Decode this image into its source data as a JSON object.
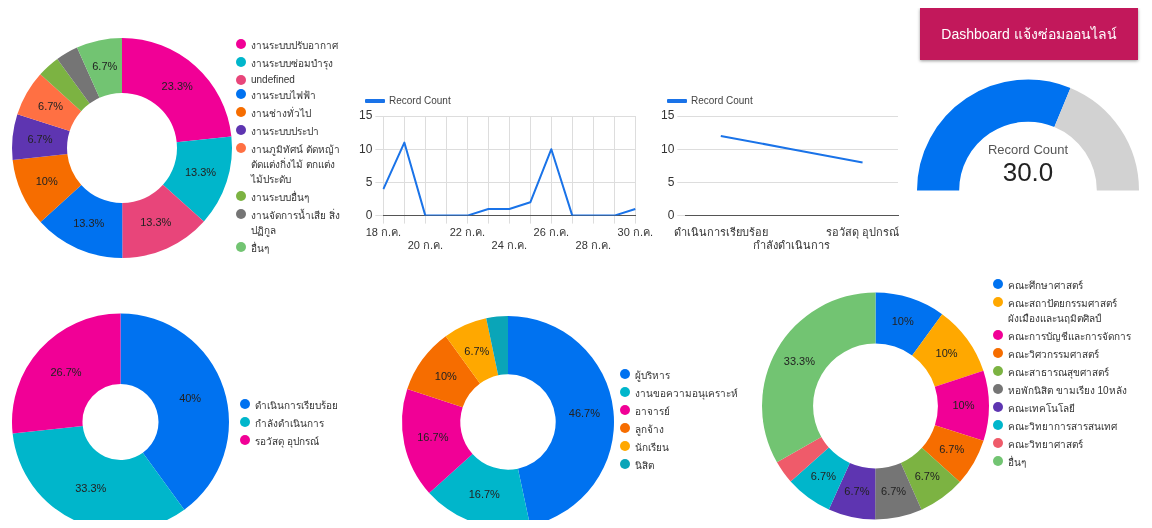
{
  "chart_data": [
    {
      "type": "donut",
      "categories": [
        "งานระบบปรับอากาศ",
        "งานระบบซ่อมบำรุง",
        "undefined",
        "งานระบบไฟฟ้า",
        "งานช่างทั่วไป",
        "งานระบบประปา",
        "งานภูมิทัศน์ ตัดหญ้า ตัดแต่งกิ่งไม้ ตกแต่งไม้ประดับ",
        "งานระบบอื่นๆ",
        "งานจัดการน้ำเสีย สิ่งปฏิกูล",
        "อื่นๆ"
      ],
      "values": [
        23.3,
        13.3,
        13.3,
        13.3,
        10,
        6.7,
        6.7,
        3.3,
        3.3,
        6.7
      ],
      "colors": [
        "#f10096",
        "#00b6cb",
        "#e8457a",
        "#0072f0",
        "#f66d00",
        "#5e35b1",
        "#ff7043",
        "#7cb342",
        "#757575",
        "#72c472"
      ],
      "value_labels": [
        "23.3%",
        "13.3%",
        "13.3%",
        "13.3%",
        "10%",
        "6.7%",
        "6.7%",
        null,
        null,
        "6.7%"
      ],
      "legend": "right"
    },
    {
      "type": "line",
      "categories": [
        "18 ก.ค.",
        null,
        "20 ก.ค.",
        null,
        "22 ก.ค.",
        null,
        "24 ก.ค.",
        null,
        "26 ก.ค.",
        null,
        "28 ก.ค.",
        null,
        "30 ก.ค."
      ],
      "series": [
        {
          "name": "Record Count",
          "color": "#1a73e8",
          "values": [
            4,
            11,
            0,
            0,
            0,
            1,
            1,
            2,
            10,
            0,
            0,
            0,
            1
          ]
        }
      ],
      "ylim": [
        0,
        15
      ],
      "yticks": [
        0,
        5,
        10,
        15
      ],
      "grid": true,
      "legend": "top left",
      "marker": "none",
      "line_style": "solid"
    },
    {
      "type": "line",
      "categories": [
        "ดำเนินการเรียบร้อย",
        "กำลังดำเนินการ",
        "รอวัสดุ อุปกรณ์"
      ],
      "series": [
        {
          "name": "Record Count",
          "color": "#1a73e8",
          "values": [
            12,
            10,
            8
          ]
        }
      ],
      "ylim": [
        0,
        15
      ],
      "yticks": [
        0,
        5,
        10,
        15
      ],
      "grid": "y",
      "legend": "top left",
      "marker": "none",
      "line_style": "solid"
    },
    {
      "type": "other",
      "title": "Dashboard แจ้งซ่อมออนไลน์"
    },
    {
      "type": "donut",
      "categories": [
        null,
        null
      ],
      "values": [
        62.5,
        37.5
      ],
      "colors": [
        "#0072f0",
        "#d2d2d2"
      ],
      "annotations": [
        "Record Count",
        "30.0"
      ]
    },
    {
      "type": "donut",
      "categories": [
        "ดำเนินการเรียบร้อย",
        "กำลังดำเนินการ",
        "รอวัสดุ อุปกรณ์"
      ],
      "values": [
        40,
        33.3,
        26.7
      ],
      "colors": [
        "#0072f0",
        "#00b6cb",
        "#f10096"
      ],
      "value_labels": [
        "40%",
        "33.3%",
        "26.7%"
      ],
      "legend": "right"
    },
    {
      "type": "donut",
      "categories": [
        "ผู้บริหาร",
        "งานขอความอนุเคราะห์",
        "อาจารย์",
        "ลูกจ้าง",
        "นักเรียน",
        "นิสิต"
      ],
      "values": [
        46.7,
        16.7,
        16.7,
        10,
        6.7,
        3.3
      ],
      "colors": [
        "#0072f0",
        "#00b6cb",
        "#f10096",
        "#f66d00",
        "#ffa800",
        "#0aa5b8"
      ],
      "value_labels": [
        "46.7%",
        "16.7%",
        "16.7%",
        "10%",
        "6.7%",
        null
      ],
      "legend": "right"
    },
    {
      "type": "donut",
      "categories": [
        "คณะศึกษาศาสตร์",
        "คณะสถาปัตยกรรมศาสตร์ ผังเมืองและนฤมิตศิลป์",
        "คณะการบัญชีและการจัดการ",
        "คณะวิศวกรรมศาสตร์",
        "คณะสาธารณสุขศาสตร์",
        "หอพักนิสิต ขามเรียง 10หลัง",
        "คณะเทคโนโลยี",
        "คณะวิทยาการสารสนเทศ",
        "คณะวิทยาศาสตร์",
        "อื่นๆ"
      ],
      "values": [
        10,
        10,
        10,
        6.7,
        6.7,
        6.7,
        6.7,
        6.7,
        3.3,
        33.3
      ],
      "colors": [
        "#0072f0",
        "#ffa800",
        "#f10096",
        "#f66d00",
        "#7cb342",
        "#757575",
        "#5e35b1",
        "#00b6cb",
        "#ef5b6a",
        "#72c472"
      ],
      "value_labels": [
        "10%",
        "10%",
        "10%",
        "6.7%",
        "6.7%",
        "6.7%",
        "6.7%",
        "6.7%",
        null,
        "33.3%"
      ],
      "legend": "right"
    }
  ]
}
